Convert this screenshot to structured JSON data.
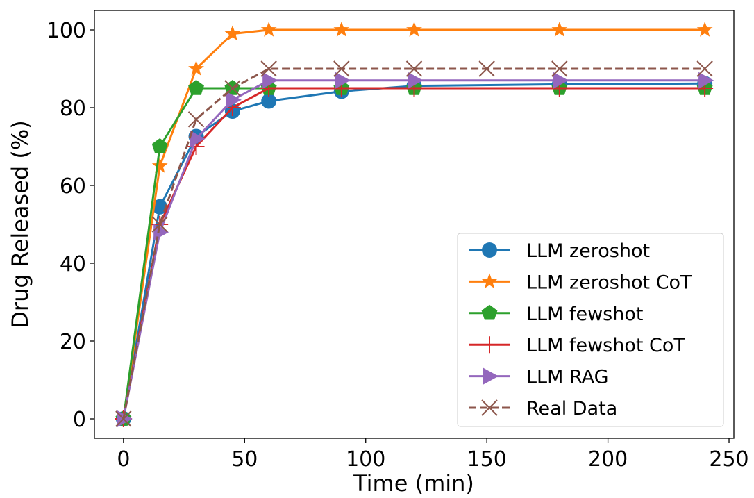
{
  "chart_data": {
    "type": "line",
    "title": "",
    "xlabel": "Time (min)",
    "ylabel": "Drug Released (%)",
    "xlim": [
      -12,
      252
    ],
    "ylim": [
      -5,
      105
    ],
    "xticks": [
      0,
      50,
      100,
      150,
      200,
      250
    ],
    "yticks": [
      0,
      20,
      40,
      60,
      80,
      100
    ],
    "xtick_labels": [
      "0",
      "50",
      "100",
      "150",
      "200",
      "250"
    ],
    "ytick_labels": [
      "0",
      "20",
      "40",
      "60",
      "80",
      "100"
    ],
    "grid": false,
    "legend_position": "lower-right",
    "series": [
      {
        "name": "LLM zeroshot",
        "color": "#1f77b4",
        "marker": "circle",
        "line_style": "solid",
        "x": [
          0,
          15,
          30,
          45,
          60,
          90,
          120,
          180,
          240
        ],
        "values": [
          0,
          54.5,
          72.6,
          79.1,
          81.7,
          84.2,
          85.6,
          86.0,
          86.2
        ]
      },
      {
        "name": "LLM zeroshot CoT",
        "color": "#ff7f0e",
        "marker": "star",
        "line_style": "solid",
        "x": [
          0,
          15,
          30,
          45,
          60,
          90,
          120,
          180,
          240
        ],
        "values": [
          0,
          65,
          90,
          99,
          100,
          100,
          100,
          100,
          100
        ]
      },
      {
        "name": "LLM fewshot",
        "color": "#2ca02c",
        "marker": "pentagon",
        "line_style": "solid",
        "x": [
          0,
          15,
          30,
          45,
          60,
          90,
          120,
          180,
          240
        ],
        "values": [
          0,
          70,
          85,
          85,
          85,
          85,
          85,
          85,
          85
        ]
      },
      {
        "name": "LLM fewshot CoT",
        "color": "#d62728",
        "marker": "plus",
        "line_style": "solid",
        "x": [
          0,
          15,
          30,
          45,
          60,
          90,
          120,
          180,
          240
        ],
        "values": [
          0,
          50,
          70,
          80,
          85,
          85,
          85,
          85,
          85
        ]
      },
      {
        "name": "LLM RAG",
        "color": "#9467bd",
        "marker": "triangle-right",
        "line_style": "solid",
        "x": [
          0,
          15,
          30,
          45,
          60,
          90,
          120,
          180,
          240
        ],
        "values": [
          0,
          48,
          72,
          82,
          87,
          87,
          87,
          87,
          87
        ]
      },
      {
        "name": "Real Data",
        "color": "#8c564b",
        "marker": "x",
        "line_style": "dashed",
        "x": [
          0,
          15,
          30,
          45,
          60,
          90,
          120,
          150,
          180,
          240
        ],
        "values": [
          0,
          50,
          77,
          85,
          90,
          90,
          90,
          90,
          90,
          90
        ]
      }
    ]
  }
}
